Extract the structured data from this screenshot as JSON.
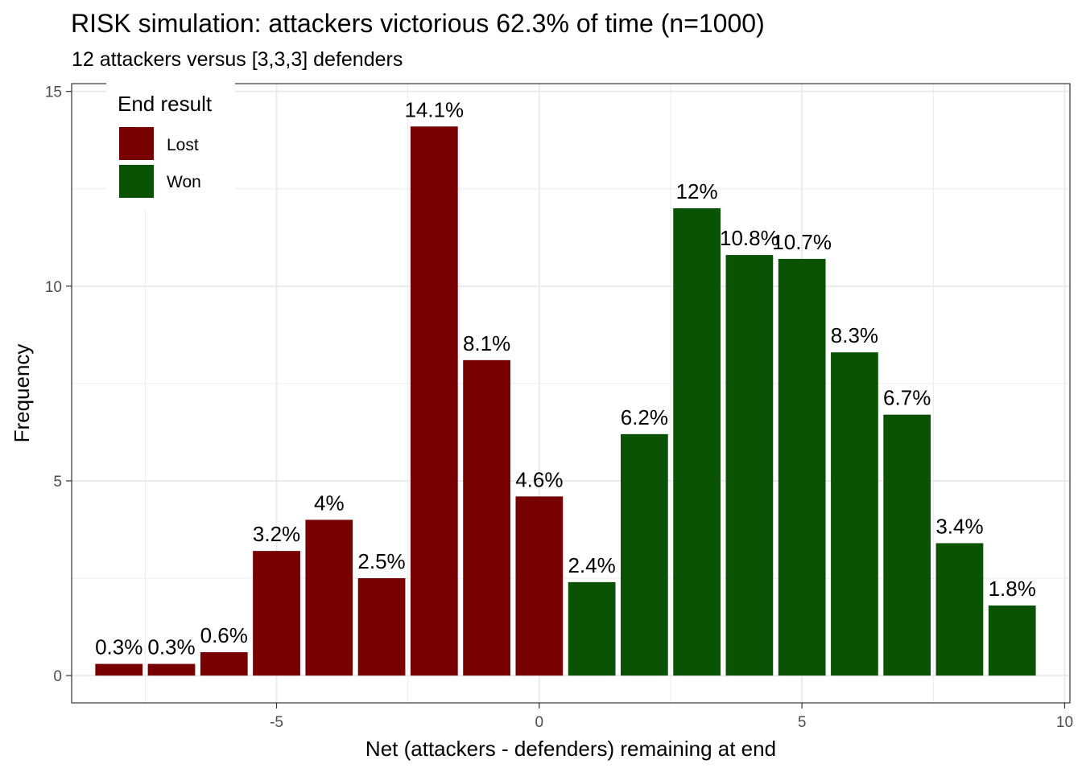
{
  "chart_data": {
    "type": "bar",
    "title": "RISK simulation: attackers victorious 62.3% of time (n=1000)",
    "subtitle": "12 attackers versus [3,3,3] defenders",
    "xlabel": "Net (attackers - defenders) remaining at end",
    "ylabel": "Frequency",
    "xlim": [
      -8.9,
      10.1
    ],
    "ylim": [
      -0.7,
      15.2
    ],
    "x_ticks": [
      -5,
      0,
      5,
      10
    ],
    "y_ticks": [
      0,
      5,
      10,
      15
    ],
    "x_tick_labels": [
      "-5",
      "0",
      "5",
      "10"
    ],
    "y_tick_labels": [
      "0",
      "5",
      "10",
      "15"
    ],
    "grid": true,
    "legend": {
      "title": "End result",
      "position": "top-left",
      "entries": [
        {
          "label": "Lost",
          "color": "#770000"
        },
        {
          "label": "Won",
          "color": "#0b5304"
        }
      ]
    },
    "series": [
      {
        "name": "Lost",
        "color": "#770000",
        "x": [
          -8,
          -7,
          -6,
          -5,
          -4,
          -3,
          -2,
          -1,
          0
        ],
        "values": [
          0.3,
          0.3,
          0.6,
          3.2,
          4.0,
          2.5,
          14.1,
          8.1,
          4.6
        ],
        "labels": [
          "0.3%",
          "0.3%",
          "0.6%",
          "3.2%",
          "4%",
          "2.5%",
          "14.1%",
          "8.1%",
          "4.6%"
        ]
      },
      {
        "name": "Won",
        "color": "#0b5304",
        "x": [
          1,
          2,
          3,
          4,
          5,
          6,
          7,
          8,
          9
        ],
        "values": [
          2.4,
          6.2,
          12.0,
          10.8,
          10.7,
          8.3,
          6.7,
          3.4,
          1.8
        ],
        "labels": [
          "2.4%",
          "6.2%",
          "12%",
          "10.8%",
          "10.7%",
          "8.3%",
          "6.7%",
          "3.4%",
          "1.8%"
        ]
      }
    ]
  }
}
